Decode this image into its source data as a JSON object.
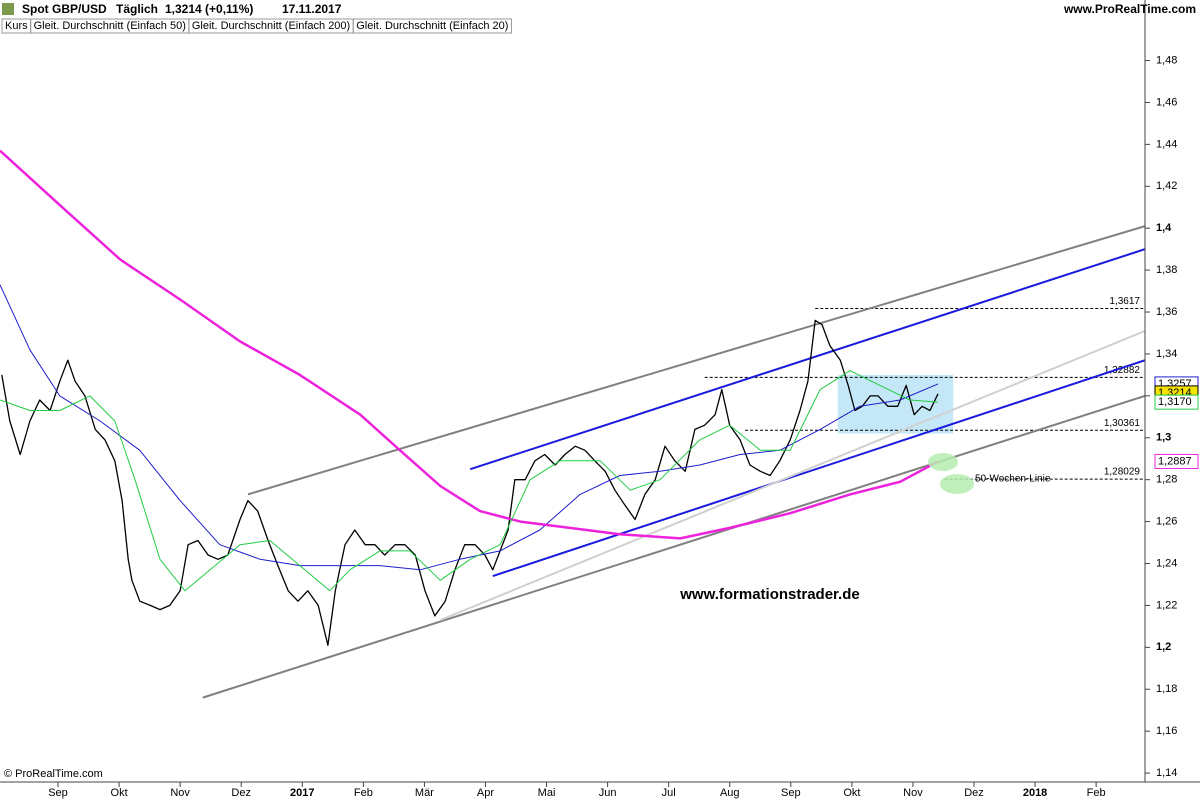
{
  "chart_data": {
    "type": "line",
    "title": "Spot GBP/USD",
    "period": "Täglich",
    "last_quote": "1,3214 (+0,11%)",
    "date": "17.11.2017",
    "source": "www.ProRealTime.com",
    "copyright": "© ProRealTime.com",
    "watermark": "www.formationstrader.de",
    "annotation": "50-Wochen-Linie",
    "xlim": [
      -0.95,
      17.8
    ],
    "ylim": [
      1.1367,
      1.5003
    ],
    "xticks": [
      {
        "value": 0,
        "label": "Sep"
      },
      {
        "value": 1,
        "label": "Okt"
      },
      {
        "value": 2,
        "label": "Nov"
      },
      {
        "value": 3,
        "label": "Dez"
      },
      {
        "value": 4,
        "label": "2017"
      },
      {
        "value": 5,
        "label": "Feb"
      },
      {
        "value": 6,
        "label": "Mär"
      },
      {
        "value": 7,
        "label": "Apr"
      },
      {
        "value": 8,
        "label": "Mai"
      },
      {
        "value": 9,
        "label": "Jun"
      },
      {
        "value": 10,
        "label": "Jul"
      },
      {
        "value": 11,
        "label": "Aug"
      },
      {
        "value": 12,
        "label": "Sep"
      },
      {
        "value": 13,
        "label": "Okt"
      },
      {
        "value": 14,
        "label": "Nov"
      },
      {
        "value": 15,
        "label": "Dez"
      },
      {
        "value": 16,
        "label": "2018"
      },
      {
        "value": 17,
        "label": "Feb"
      }
    ],
    "yticks": [
      {
        "value": 1.14,
        "label": "1,14"
      },
      {
        "value": 1.16,
        "label": "1,16"
      },
      {
        "value": 1.18,
        "label": "1,18"
      },
      {
        "value": 1.2,
        "label": "1,2"
      },
      {
        "value": 1.22,
        "label": "1,22"
      },
      {
        "value": 1.24,
        "label": "1,24"
      },
      {
        "value": 1.26,
        "label": "1,26"
      },
      {
        "value": 1.28,
        "label": "1,28"
      },
      {
        "value": 1.3,
        "label": "1,3"
      },
      {
        "value": 1.32,
        "label": "1,32"
      },
      {
        "value": 1.34,
        "label": "1,34"
      },
      {
        "value": 1.36,
        "label": "1,36"
      },
      {
        "value": 1.38,
        "label": "1,38"
      },
      {
        "value": 1.4,
        "label": "1,4"
      },
      {
        "value": 1.42,
        "label": "1,42"
      },
      {
        "value": 1.44,
        "label": "1,44"
      },
      {
        "value": 1.46,
        "label": "1,46"
      },
      {
        "value": 1.48,
        "label": "1,48"
      }
    ],
    "series": [
      {
        "name": "Kurs",
        "color": "#000000",
        "x": [
          -0.92,
          -0.79,
          -0.62,
          -0.46,
          -0.3,
          -0.13,
          0.03,
          0.16,
          0.28,
          0.44,
          0.61,
          0.77,
          0.93,
          1.05,
          1.15,
          1.21,
          1.34,
          1.51,
          1.67,
          1.83,
          2.0,
          2.13,
          2.29,
          2.46,
          2.62,
          2.78,
          2.98,
          3.11,
          3.27,
          3.44,
          3.6,
          3.77,
          3.93,
          4.09,
          4.26,
          4.42,
          4.54,
          4.7,
          4.86,
          5.03,
          5.19,
          5.35,
          5.52,
          5.68,
          5.85,
          6.01,
          6.17,
          6.34,
          6.5,
          6.66,
          6.83,
          6.99,
          7.12,
          7.24,
          7.37,
          7.48,
          7.65,
          7.81,
          7.97,
          8.14,
          8.3,
          8.47,
          8.63,
          8.79,
          8.96,
          9.12,
          9.28,
          9.45,
          9.61,
          9.78,
          9.94,
          10.1,
          10.27,
          10.43,
          10.59,
          10.76,
          10.87,
          11.0,
          11.17,
          11.33,
          11.5,
          11.66,
          11.82,
          11.99,
          12.15,
          12.28,
          12.4,
          12.51,
          12.64,
          12.81,
          12.94,
          13.05,
          13.17,
          13.3,
          13.43,
          13.59,
          13.75,
          13.89,
          14.02,
          14.15,
          14.28,
          14.41
        ],
        "values": [
          1.33,
          1.308,
          1.292,
          1.308,
          1.318,
          1.313,
          1.327,
          1.337,
          1.327,
          1.32,
          1.304,
          1.299,
          1.289,
          1.27,
          1.242,
          1.232,
          1.222,
          1.22,
          1.218,
          1.22,
          1.227,
          1.249,
          1.251,
          1.244,
          1.242,
          1.244,
          1.261,
          1.27,
          1.265,
          1.251,
          1.239,
          1.227,
          1.222,
          1.227,
          1.22,
          1.201,
          1.227,
          1.249,
          1.256,
          1.249,
          1.249,
          1.244,
          1.249,
          1.249,
          1.244,
          1.227,
          1.215,
          1.222,
          1.237,
          1.249,
          1.249,
          1.244,
          1.237,
          1.246,
          1.256,
          1.28,
          1.28,
          1.289,
          1.292,
          1.287,
          1.292,
          1.296,
          1.294,
          1.289,
          1.284,
          1.275,
          1.268,
          1.261,
          1.273,
          1.28,
          1.296,
          1.289,
          1.284,
          1.304,
          1.306,
          1.311,
          1.323,
          1.306,
          1.299,
          1.287,
          1.284,
          1.282,
          1.289,
          1.299,
          1.313,
          1.327,
          1.356,
          1.354,
          1.344,
          1.337,
          1.325,
          1.313,
          1.315,
          1.32,
          1.32,
          1.315,
          1.315,
          1.325,
          1.311,
          1.315,
          1.313,
          1.321
        ]
      },
      {
        "name": "Gleit. Durchschnitt (Einfach 50)",
        "color": "#1d1dcc",
        "x": [
          -0.95,
          -0.46,
          0.03,
          0.69,
          1.34,
          2.0,
          2.65,
          3.31,
          3.96,
          4.62,
          5.27,
          5.93,
          6.58,
          7.24,
          7.89,
          8.55,
          9.2,
          9.86,
          10.51,
          11.17,
          11.82,
          12.48,
          13.13,
          13.79,
          14.41
        ],
        "values": [
          1.373,
          1.342,
          1.32,
          1.308,
          1.294,
          1.27,
          1.249,
          1.242,
          1.239,
          1.239,
          1.239,
          1.237,
          1.242,
          1.246,
          1.256,
          1.273,
          1.282,
          1.284,
          1.287,
          1.292,
          1.294,
          1.304,
          1.315,
          1.318,
          1.3257
        ]
      },
      {
        "name": "Gleit. Durchschnitt (Einfach 200)",
        "color": "#ee22dd",
        "x": [
          -0.95,
          0.03,
          1.02,
          2.0,
          2.98,
          3.96,
          4.95,
          5.6,
          6.26,
          6.91,
          7.57,
          8.38,
          9.2,
          10.19,
          11.0,
          11.99,
          12.97,
          13.79,
          14.41
        ],
        "values": [
          1.437,
          1.411,
          1.385,
          1.366,
          1.346,
          1.33,
          1.311,
          1.294,
          1.277,
          1.265,
          1.26,
          1.257,
          1.254,
          1.252,
          1.257,
          1.264,
          1.273,
          1.279,
          1.2887
        ]
      },
      {
        "name": "Gleit. Durchschnitt (Einfach 20)",
        "color": "#22cc44",
        "x": [
          -0.95,
          -0.46,
          0.03,
          0.52,
          0.93,
          1.26,
          1.67,
          2.08,
          2.49,
          2.98,
          3.47,
          3.96,
          4.45,
          4.78,
          5.27,
          5.76,
          6.26,
          6.75,
          7.24,
          7.73,
          8.22,
          8.88,
          9.37,
          9.86,
          10.51,
          11.0,
          11.5,
          11.99,
          12.48,
          12.97,
          13.46,
          13.95,
          14.41
        ],
        "values": [
          1.318,
          1.313,
          1.313,
          1.32,
          1.308,
          1.28,
          1.242,
          1.227,
          1.237,
          1.249,
          1.251,
          1.239,
          1.227,
          1.237,
          1.246,
          1.246,
          1.232,
          1.242,
          1.249,
          1.28,
          1.289,
          1.289,
          1.275,
          1.28,
          1.299,
          1.306,
          1.294,
          1.294,
          1.323,
          1.332,
          1.325,
          1.318,
          1.317
        ]
      }
    ],
    "trendlines": [
      {
        "color": "#808080",
        "x": [
          3.11,
          17.8
        ],
        "values": [
          1.273,
          1.401
        ]
      },
      {
        "color": "#808080",
        "x": [
          2.37,
          17.8
        ],
        "values": [
          1.176,
          1.32
        ]
      },
      {
        "color": "#1a1add",
        "x": [
          6.75,
          17.8
        ],
        "values": [
          1.285,
          1.39
        ]
      },
      {
        "color": "#1a1add",
        "x": [
          7.12,
          17.8
        ],
        "values": [
          1.234,
          1.337
        ]
      },
      {
        "color": "#d0d0d0",
        "x": [
          6.26,
          17.8
        ],
        "values": [
          1.213,
          1.351
        ]
      }
    ],
    "levels": [
      {
        "value": 1.3617,
        "label": "1,3617",
        "x": [
          12.4,
          17.8
        ]
      },
      {
        "value": 1.32882,
        "label": "1,32882",
        "x": [
          10.59,
          17.8
        ]
      },
      {
        "value": 1.30361,
        "label": "1,30361",
        "x": [
          11.25,
          17.8
        ]
      },
      {
        "value": 1.28029,
        "label": "1,28029",
        "x": [
          14.52,
          17.8
        ]
      }
    ],
    "highlight_box": {
      "x": [
        12.77,
        14.66
      ],
      "y": [
        1.302,
        1.33
      ],
      "color": "#bfe6f7"
    },
    "price_labels": [
      {
        "value": 1.3257,
        "label": "1,3257",
        "color": "#1d1dcc",
        "fill": "#ffffff"
      },
      {
        "value": 1.3214,
        "label": "1,3214",
        "color": "#000000",
        "fill": "#f5e400"
      },
      {
        "value": 1.317,
        "label": "1,3170",
        "color": "#22cc44",
        "fill": "#ffffff"
      },
      {
        "value": 1.2887,
        "label": "1,2887",
        "color": "#ee22dd",
        "fill": "#ffffff"
      }
    ]
  }
}
